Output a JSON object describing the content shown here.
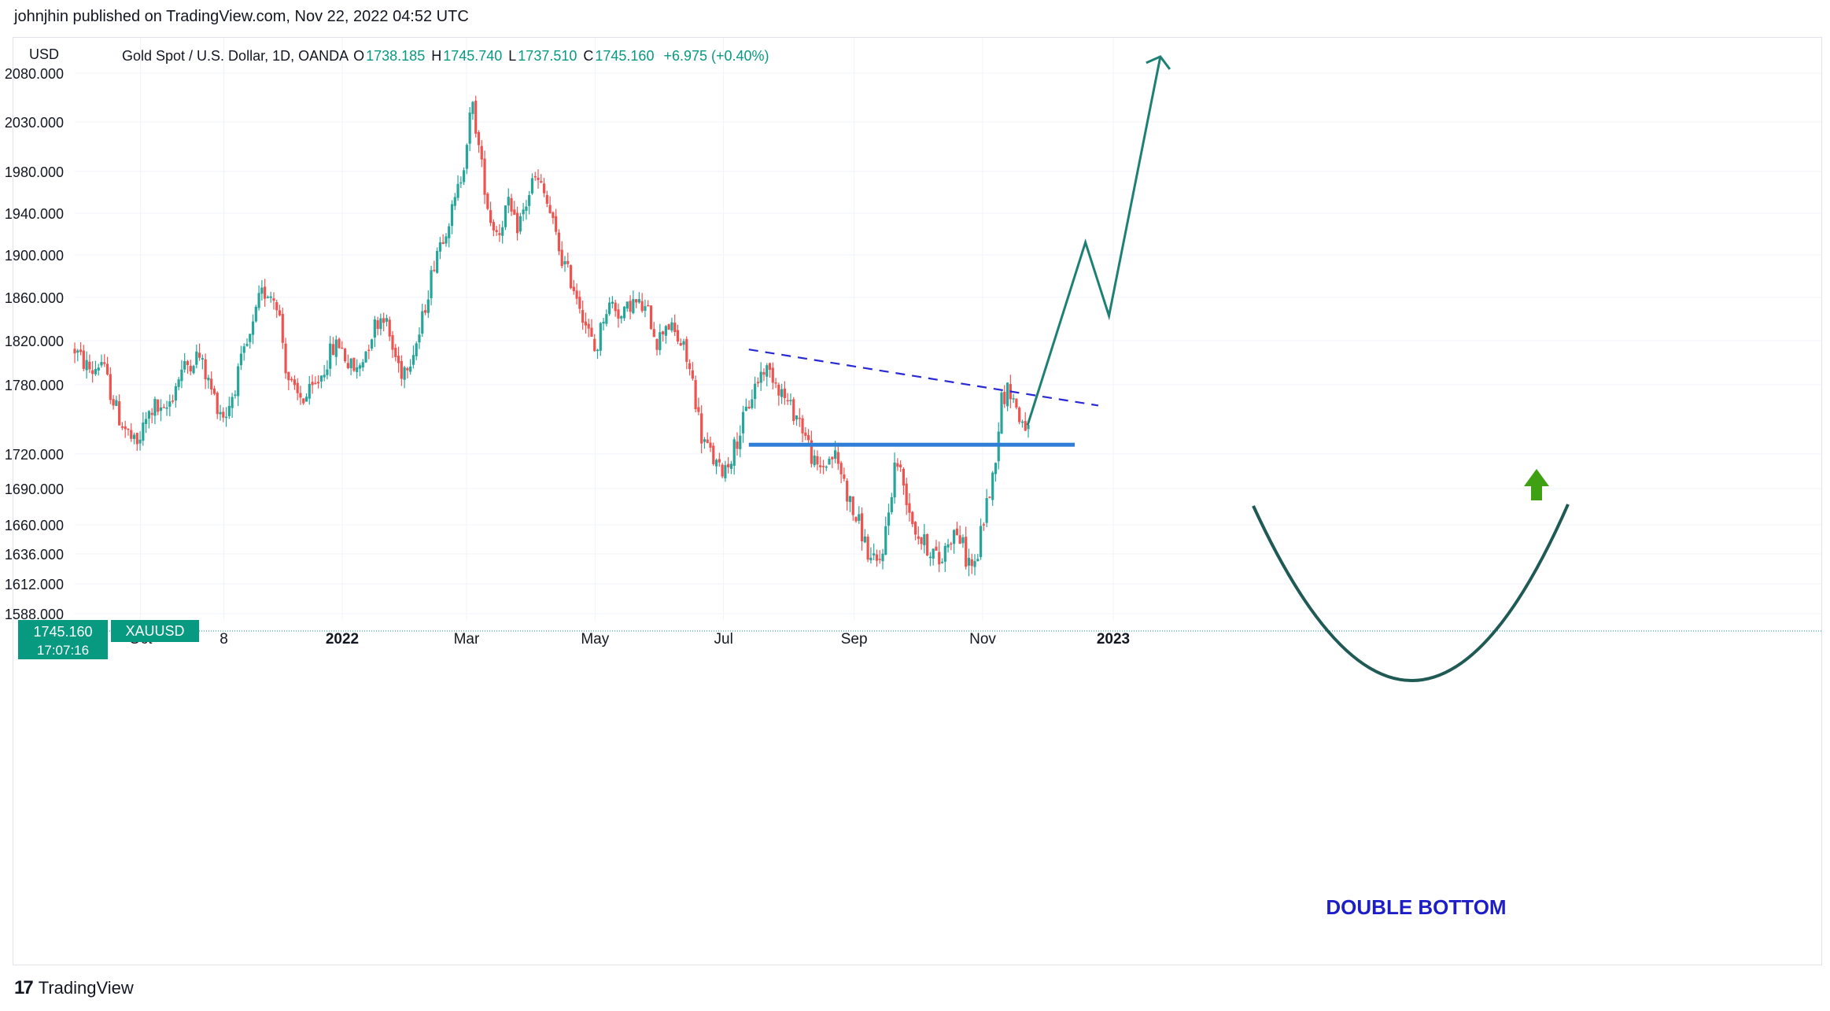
{
  "header": {
    "published_by": "johnjhin published on TradingView.com, Nov 22, 2022 04:52 UTC"
  },
  "footer": {
    "logo_text": "TradingView",
    "logo_mark": "17"
  },
  "colors": {
    "up": "#26a69a",
    "down": "#ef5350",
    "accent": "#089981",
    "projection": "#1e8074",
    "support": "#2f7fd6",
    "trendline": "#2828d4",
    "annotation": "#1e1ec8",
    "arrow": "#3ea012",
    "grid": "#f0f3fa",
    "axis_text": "#131722"
  },
  "chart_data": {
    "type": "candlestick",
    "title": "Gold Spot / U.S. Dollar, 1D, OANDA",
    "currency_label": "USD",
    "symbol": "XAUUSD",
    "ohlc": {
      "open_label": "O",
      "open": "1738.185",
      "high_label": "H",
      "high": "1745.740",
      "low_label": "L",
      "low": "1737.510",
      "close_label": "C",
      "close": "1745.160",
      "change": "+6.975 (+0.40%)"
    },
    "last_price_label": "1745.160",
    "countdown_label": "17:07:16",
    "y_ticks": [
      "2080.000",
      "2030.000",
      "1980.000",
      "1940.000",
      "1900.000",
      "1860.000",
      "1820.000",
      "1780.000",
      "1720.000",
      "1690.000",
      "1660.000",
      "1636.000",
      "1612.000",
      "1588.000"
    ],
    "x_ticks": [
      {
        "label": "Oct",
        "bold": false
      },
      {
        "label": "8",
        "bold": false
      },
      {
        "label": "2022",
        "bold": true
      },
      {
        "label": "Mar",
        "bold": false
      },
      {
        "label": "May",
        "bold": false
      },
      {
        "label": "Jul",
        "bold": false
      },
      {
        "label": "Sep",
        "bold": false
      },
      {
        "label": "Nov",
        "bold": false
      },
      {
        "label": "2023",
        "bold": true
      }
    ],
    "price_keypoints": [
      1812,
      1800,
      1792,
      1802,
      1775,
      1752,
      1738,
      1725,
      1748,
      1762,
      1752,
      1770,
      1792,
      1800,
      1808,
      1785,
      1765,
      1752,
      1775,
      1804,
      1825,
      1862,
      1866,
      1855,
      1790,
      1770,
      1768,
      1775,
      1790,
      1810,
      1818,
      1798,
      1792,
      1812,
      1835,
      1845,
      1812,
      1792,
      1805,
      1825,
      1865,
      1905,
      1925,
      1948,
      1985,
      2050,
      1990,
      1935,
      1920,
      1950,
      1925,
      1945,
      1975,
      1962,
      1935,
      1900,
      1880,
      1860,
      1832,
      1808,
      1848,
      1855,
      1840,
      1856,
      1852,
      1845,
      1818,
      1838,
      1825,
      1812,
      1782,
      1735,
      1720,
      1705,
      1712,
      1732,
      1755,
      1778,
      1795,
      1790,
      1775,
      1760,
      1752,
      1730,
      1705,
      1712,
      1720,
      1700,
      1672,
      1658,
      1632,
      1625,
      1660,
      1718,
      1690,
      1660,
      1645,
      1640,
      1628,
      1650,
      1655,
      1632,
      1625,
      1668,
      1700,
      1770,
      1776,
      1750,
      1745
    ],
    "trend_lines": [
      {
        "name": "resistance",
        "style": "dashed",
        "points": [
          [
            "2022-07-13",
            1812
          ],
          [
            "2022-12-25",
            1762
          ]
        ]
      },
      {
        "name": "support",
        "style": "solid",
        "points": [
          [
            "2022-07-13",
            1728
          ],
          [
            "2022-12-14",
            1728
          ]
        ]
      }
    ],
    "projection": {
      "points": [
        [
          "2022-11-22",
          1745
        ],
        [
          "2022-12-19",
          1912
        ],
        [
          "2022-12-30",
          1843
        ],
        [
          "2023-01-23",
          2097
        ]
      ]
    },
    "annotation": "DOUBLE BOTTOM"
  }
}
